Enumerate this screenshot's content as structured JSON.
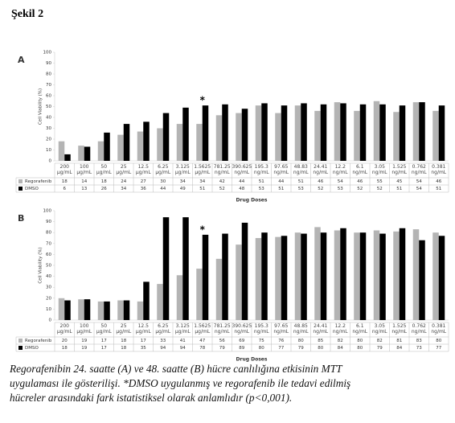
{
  "figure_title": "Şekil 2",
  "caption": [
    "Regorafenibin 24. saatte (A) ve 48. saatte (B) hücre canlılığına etkisinin MTT",
    "uygulaması ile gösterilişi. *DMSO uygulanmış ve regorafenib ile tedavi edilmiş",
    "hücreler arasındaki fark istatistiksel olarak anlamlıdır (p<0,001)."
  ],
  "chart_data": [
    {
      "type": "bar",
      "panel": "A",
      "ylabel": "Cell Viability (%)",
      "xlabel": "Drug Doses",
      "annotation": "*",
      "categories": [
        "200 µg/mL",
        "100 µg/mL",
        "50 µg/mL",
        "25 µg/mL",
        "12.5 µg/mL",
        "6.25 µg/mL",
        "3.125 µg/mL",
        "1.5625 µg/mL",
        "781.25 ng/mL",
        "390.625 ng/mL",
        "195.3 ng/mL",
        "97.65 ng/mL",
        "48.83 ng/mL",
        "24.41 ng/mL",
        "12.2 ng/mL",
        "6.1 ng/mL",
        "3.05 ng/mL",
        "1.525 ng/mL",
        "0.762 ng/mL",
        "0.381 ng/mL"
      ],
      "series": [
        {
          "name": "Regorafenib",
          "color": "#b4b4b4",
          "values": [
            18,
            14,
            18,
            24,
            27,
            30,
            34,
            34,
            42,
            44,
            51,
            44,
            51,
            46,
            54,
            46,
            55,
            45,
            54,
            46
          ]
        },
        {
          "name": "DMSO",
          "color": "#000000",
          "values": [
            6,
            13,
            26,
            34,
            36,
            44,
            49,
            51,
            52,
            48,
            53,
            51,
            53,
            52,
            53,
            52,
            52,
            51,
            54,
            51
          ]
        }
      ],
      "ylim": [
        0,
        100
      ],
      "yticks": [
        0,
        10,
        20,
        30,
        40,
        50,
        60,
        70,
        80,
        90,
        100
      ]
    },
    {
      "type": "bar",
      "panel": "B",
      "ylabel": "Cell Viability (%)",
      "xlabel": "Drug Doses",
      "annotation": "*",
      "categories": [
        "200 µg/mL",
        "100 µg/mL",
        "50 µg/mL",
        "25 µg/mL",
        "12.5 µg/mL",
        "6.25 µg/mL",
        "3.125 µg/mL",
        "1.5625 µg/mL",
        "781.25 ng/mL",
        "390.625 ng/mL",
        "195.3 ng/mL",
        "97.65 ng/mL",
        "48.85 ng/mL",
        "24.41 ng/mL",
        "12.2 ng/mL",
        "6.1 ng/mL",
        "3.05 ng/mL",
        "1.525 ng/mL",
        "0.762 ng/mL",
        "0.381 ng/mL"
      ],
      "series": [
        {
          "name": "Regorafenib",
          "color": "#b4b4b4",
          "values": [
            20,
            19,
            17,
            18,
            17,
            33,
            41,
            47,
            56,
            69,
            75,
            76,
            80,
            85,
            82,
            80,
            82,
            81,
            83,
            80
          ]
        },
        {
          "name": "DMSO",
          "color": "#000000",
          "values": [
            18,
            19,
            17,
            18,
            35,
            94,
            94,
            78,
            79,
            89,
            80,
            77,
            79,
            80,
            84,
            80,
            79,
            84,
            73,
            77
          ]
        }
      ],
      "ylim": [
        0,
        100
      ],
      "yticks": [
        0,
        10,
        20,
        30,
        40,
        50,
        60,
        70,
        80,
        90,
        100
      ]
    }
  ]
}
